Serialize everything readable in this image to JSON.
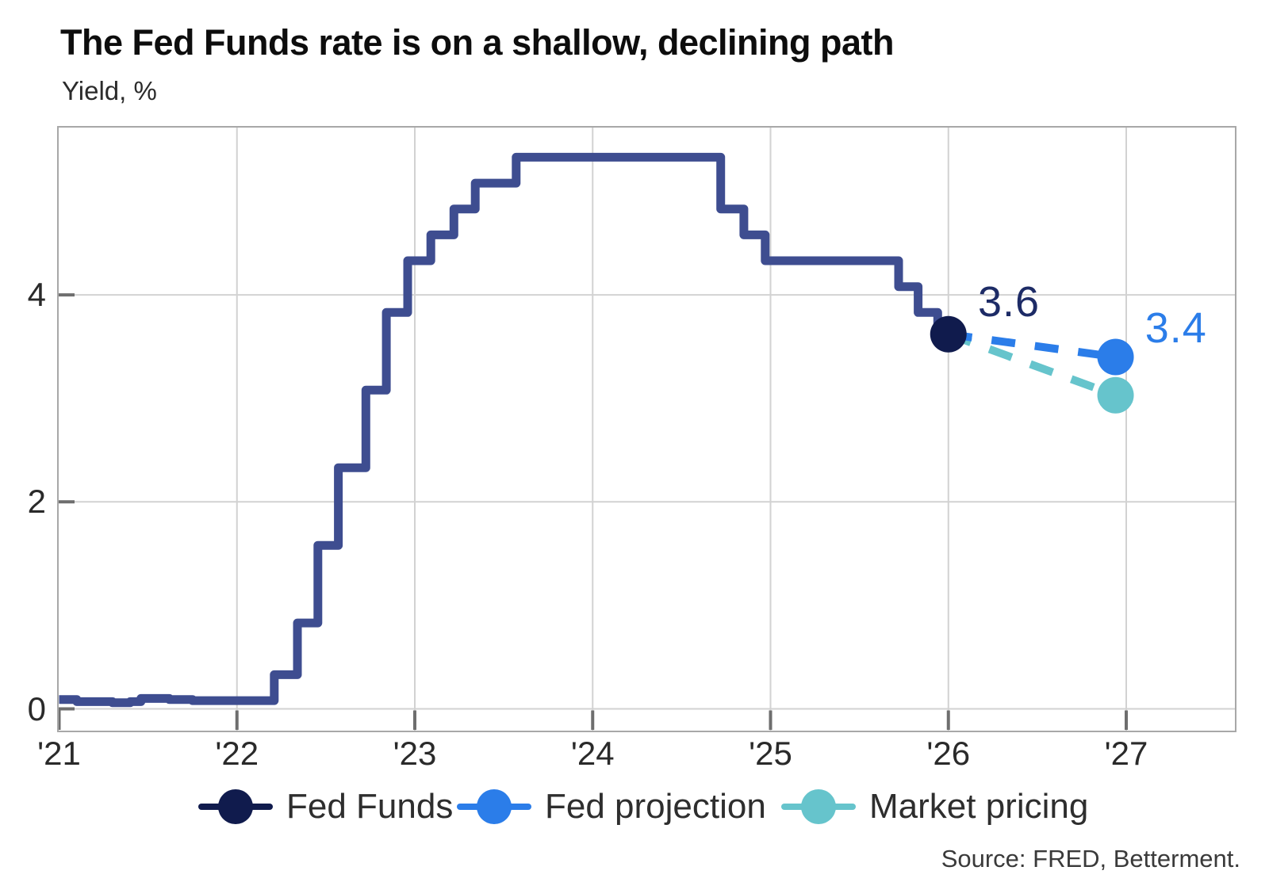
{
  "header": {
    "title": "The Fed Funds rate is on a shallow, declining path",
    "subtitle": "Yield, %"
  },
  "source": "Source: FRED, Betterment.",
  "colors": {
    "grid": "#d2d2d2",
    "border": "#a8a8a8",
    "tick": "#6e6e6e",
    "fed_funds_line": "#3e4d90",
    "fed_funds_dot": "#101b4d",
    "fed_projection": "#2b7de9",
    "market_pricing": "#66c4cc",
    "label_fed_funds": "#1d2b66",
    "label_fed_projection": "#2b7de9"
  },
  "legend": {
    "items": [
      {
        "label": "Fed Funds",
        "color": "#101b4d"
      },
      {
        "label": "Fed projection",
        "color": "#2b7de9"
      },
      {
        "label": "Market pricing",
        "color": "#66c4cc"
      }
    ]
  },
  "chart_data": {
    "type": "line",
    "title": "The Fed Funds rate is on a shallow, declining path",
    "xlabel": "",
    "ylabel": "Yield, %",
    "xlim": [
      2021.0,
      2027.62
    ],
    "ylim": [
      -0.22,
      5.62
    ],
    "grid": true,
    "legend_position": "bottom",
    "x_ticks": [
      2021,
      2022,
      2023,
      2024,
      2025,
      2026,
      2027
    ],
    "x_tick_labels": [
      "'21",
      "'22",
      "'23",
      "'24",
      "'25",
      "'26",
      "'27"
    ],
    "y_ticks": [
      0,
      2,
      4
    ],
    "y_tick_labels": [
      "0",
      "2",
      "4"
    ],
    "series": [
      {
        "name": "Fed Funds",
        "style": "step",
        "color": "#3e4d90",
        "points": [
          [
            2021.0,
            0.09
          ],
          [
            2021.1,
            0.07
          ],
          [
            2021.3,
            0.06
          ],
          [
            2021.4,
            0.07
          ],
          [
            2021.46,
            0.1
          ],
          [
            2021.62,
            0.09
          ],
          [
            2021.75,
            0.08
          ],
          [
            2022.21,
            0.33
          ],
          [
            2022.34,
            0.83
          ],
          [
            2022.455,
            1.58
          ],
          [
            2022.57,
            2.33
          ],
          [
            2022.725,
            3.08
          ],
          [
            2022.84,
            3.83
          ],
          [
            2022.96,
            4.33
          ],
          [
            2023.09,
            4.58
          ],
          [
            2023.22,
            4.83
          ],
          [
            2023.34,
            5.08
          ],
          [
            2023.57,
            5.33
          ],
          [
            2024.72,
            4.83
          ],
          [
            2024.85,
            4.58
          ],
          [
            2024.97,
            4.33
          ],
          [
            2025.72,
            4.08
          ],
          [
            2025.83,
            3.83
          ],
          [
            2025.94,
            3.62
          ],
          [
            2026.0,
            3.62
          ]
        ],
        "end_dot": {
          "x": 2026.0,
          "y": 3.62,
          "color": "#101b4d"
        }
      },
      {
        "name": "Fed projection",
        "style": "dashed",
        "color": "#2b7de9",
        "points": [
          [
            2026.0,
            3.62
          ],
          [
            2026.94,
            3.4
          ]
        ],
        "end_dot": {
          "x": 2026.94,
          "y": 3.4,
          "color": "#2b7de9"
        }
      },
      {
        "name": "Market pricing",
        "style": "dashed",
        "color": "#66c4cc",
        "points": [
          [
            2026.0,
            3.62
          ],
          [
            2026.94,
            3.03
          ]
        ],
        "end_dot": {
          "x": 2026.94,
          "y": 3.03,
          "color": "#66c4cc"
        }
      }
    ],
    "annotations": [
      {
        "text": "3.6",
        "x": 2026.34,
        "y": 3.93,
        "color": "#1d2b66"
      },
      {
        "text": "3.4",
        "x": 2027.28,
        "y": 3.68,
        "color": "#2b7de9"
      }
    ]
  }
}
